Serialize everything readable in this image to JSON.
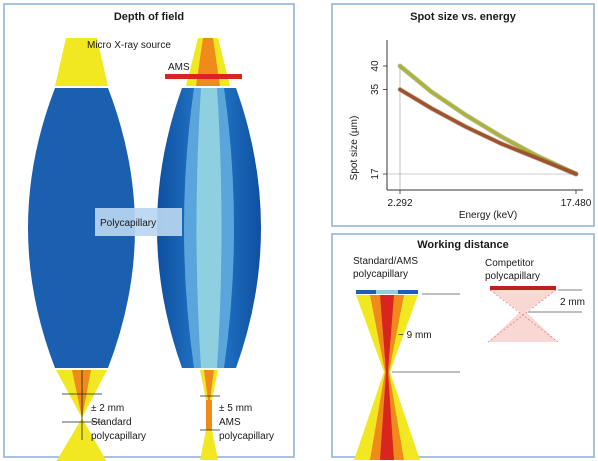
{
  "panels": {
    "depth_of_field": {
      "title": "Depth of field",
      "source_label": "Micro X-ray source",
      "ams_label": "AMS",
      "optic_label": "Polycapillary",
      "standard_range": "± 2 mm",
      "standard_line1": "Standard",
      "standard_line2": "polycapillary",
      "ams_range": "± 5 mm",
      "ams_line1": "AMS",
      "ams_line2": "polycapillary"
    },
    "spot_size": {
      "title": "Spot size vs. energy"
    },
    "working_distance": {
      "title": "Working distance",
      "left_line1": "Standard/AMS",
      "left_line2": "polycapillary",
      "right_line1": "Competitor",
      "right_line2": "polycapillary",
      "right_distance": "2 mm",
      "left_distance": "~ 9 mm"
    }
  },
  "colors": {
    "frame": "#8faed0",
    "lens_dark": "#1a5fb0",
    "lens_light": "#8fd0e0",
    "yellow": "#f2e822",
    "orange": "#f08a1a",
    "red": "#d8261e",
    "olive": "#a8b43c",
    "brown": "#a0522d"
  },
  "chart_data": {
    "type": "line",
    "title": "Spot size vs. energy",
    "xlabel": "Energy (keV)",
    "ylabel": "Spot size (µm)",
    "x_ticks": [
      "2.292",
      "17.480"
    ],
    "y_ticks": [
      "17",
      "35",
      "40"
    ],
    "xlim": [
      2.292,
      17.48
    ],
    "ylim": [
      17,
      40
    ],
    "series": [
      {
        "color": "#a8b43c",
        "x": [
          2.292,
          5,
          8,
          11,
          14,
          17.48
        ],
        "values": [
          40,
          34.5,
          29.5,
          25,
          21,
          17
        ]
      },
      {
        "color": "#a0522d",
        "x": [
          2.292,
          5,
          8,
          11,
          14,
          17.48
        ],
        "values": [
          35,
          31,
          27,
          23.5,
          20.5,
          17
        ]
      }
    ]
  }
}
